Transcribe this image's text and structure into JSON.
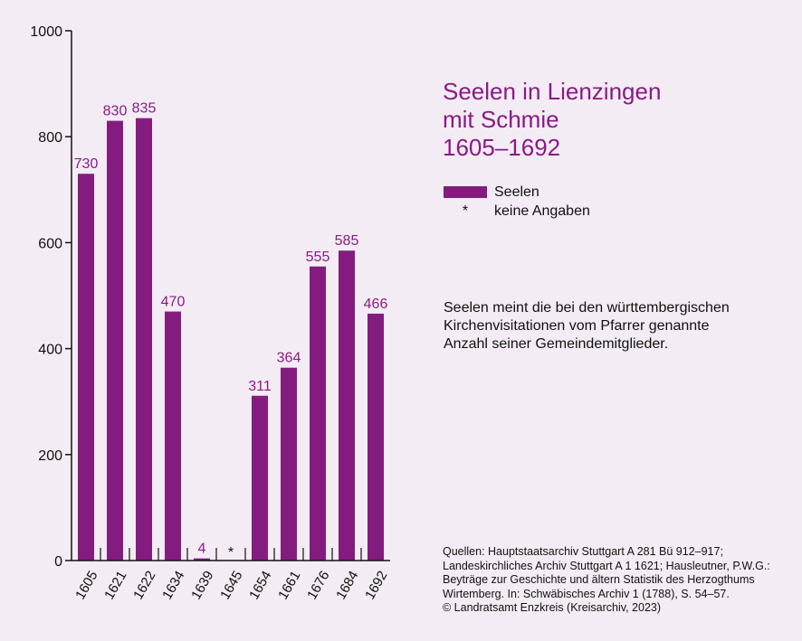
{
  "title_lines": [
    "Seelen in Lienzingen",
    "mit Schmie",
    "1605–1692"
  ],
  "legend": {
    "series_label": "Seelen",
    "missing_symbol": "*",
    "missing_label": "keine Angaben"
  },
  "note_lines": [
    "Seelen meint die bei den württembergischen",
    "Kirchenvisitationen vom Pfarrer genannte",
    "Anzahl seiner Gemeindemitglieder."
  ],
  "sources_lines": [
    "Quellen: Hauptstaatsarchiv Stuttgart A 281 Bü 912–917;",
    "Landeskirchliches Archiv Stuttgart A 1 1621; Hausleutner, P.W.G.:",
    "Beyträge zur Geschichte und ältern Statistik des Herzogthums",
    "Wirtemberg. In: Schwäbisches Archiv 1 (1788), S. 54–57.",
    "© Landratsamt Enzkreis (Kreisarchiv, 2023)"
  ],
  "colors": {
    "bar": "#841c80",
    "label": "#8a1a86",
    "axis": "#111111",
    "background": "#f4ecf4"
  },
  "chart_data": {
    "type": "bar",
    "title": "Seelen in Lienzingen mit Schmie 1605–1692",
    "xlabel": "",
    "ylabel": "",
    "ylim": [
      0,
      1000
    ],
    "yticks": [
      0,
      200,
      400,
      600,
      800,
      1000
    ],
    "categories": [
      "1605",
      "1621",
      "1622",
      "1634",
      "1639",
      "1645",
      "1654",
      "1661",
      "1676",
      "1684",
      "1692"
    ],
    "series": [
      {
        "name": "Seelen",
        "values": [
          730,
          830,
          835,
          470,
          4,
          null,
          311,
          364,
          555,
          585,
          466
        ],
        "labels": [
          "730",
          "830",
          "835",
          "470",
          "4",
          "*",
          "311",
          "364",
          "555",
          "585",
          "466"
        ]
      }
    ],
    "grid": false,
    "legend_position": "right"
  }
}
